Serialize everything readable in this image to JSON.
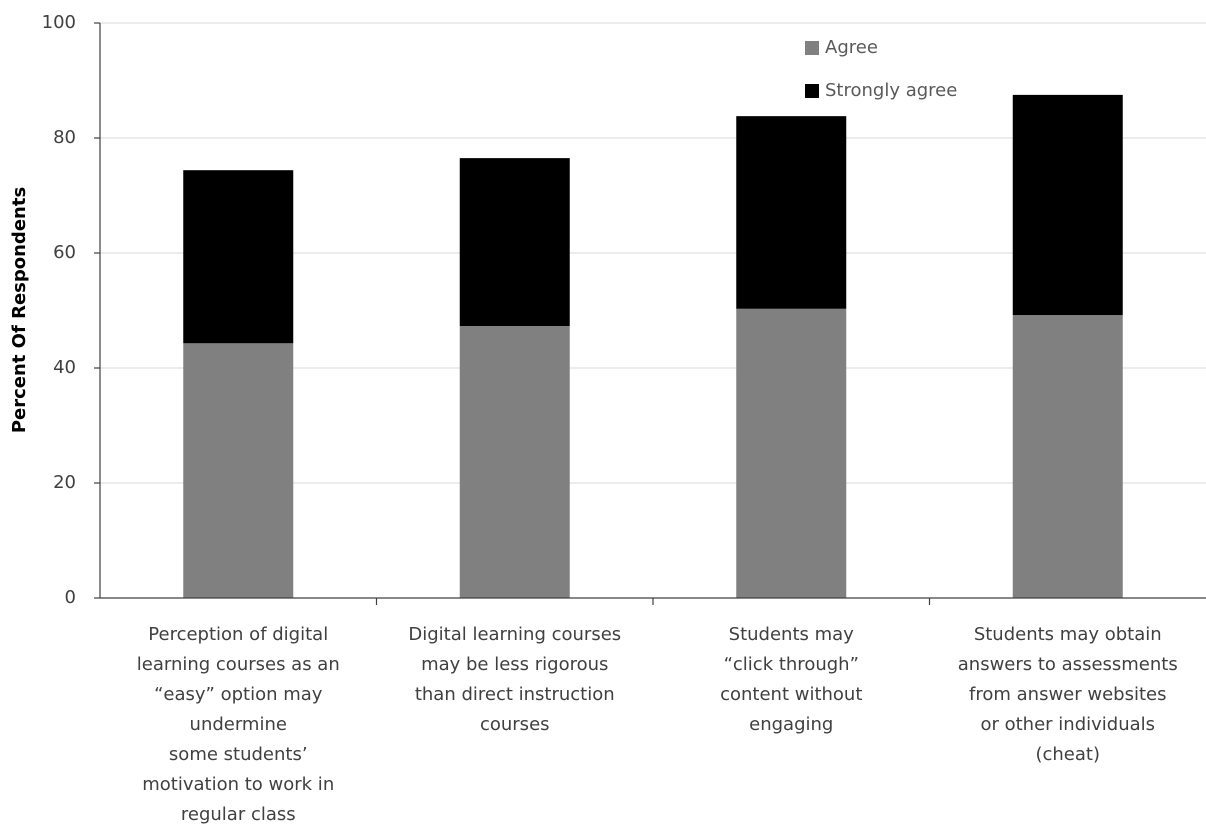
{
  "chart_data": {
    "type": "stacked_bar",
    "y_label": "Percent Of Respondents",
    "categories": [
      "Perception of digital\nlearning courses as an\n“easy” option may\nundermine\nsome students’\nmotivation to work in\nregular class",
      "Digital learning courses\nmay be less rigorous\nthan direct instruction\ncourses",
      "Students may\n“click through”\ncontent without\nengaging",
      "Students may obtain\nanswers to assessments\nfrom answer websites\nor other individuals\n(cheat)"
    ],
    "series": [
      {
        "name": "Agree",
        "color": "#808080",
        "values": [
          44.3,
          47.3,
          50.3,
          49.2
        ]
      },
      {
        "name": "Strongly agree",
        "color": "#000000",
        "values": [
          30.1,
          29.2,
          33.5,
          38.3
        ]
      }
    ],
    "ylim": [
      0,
      100
    ],
    "yticks": [
      0,
      20,
      40,
      60,
      80,
      100
    ],
    "grid": true
  }
}
